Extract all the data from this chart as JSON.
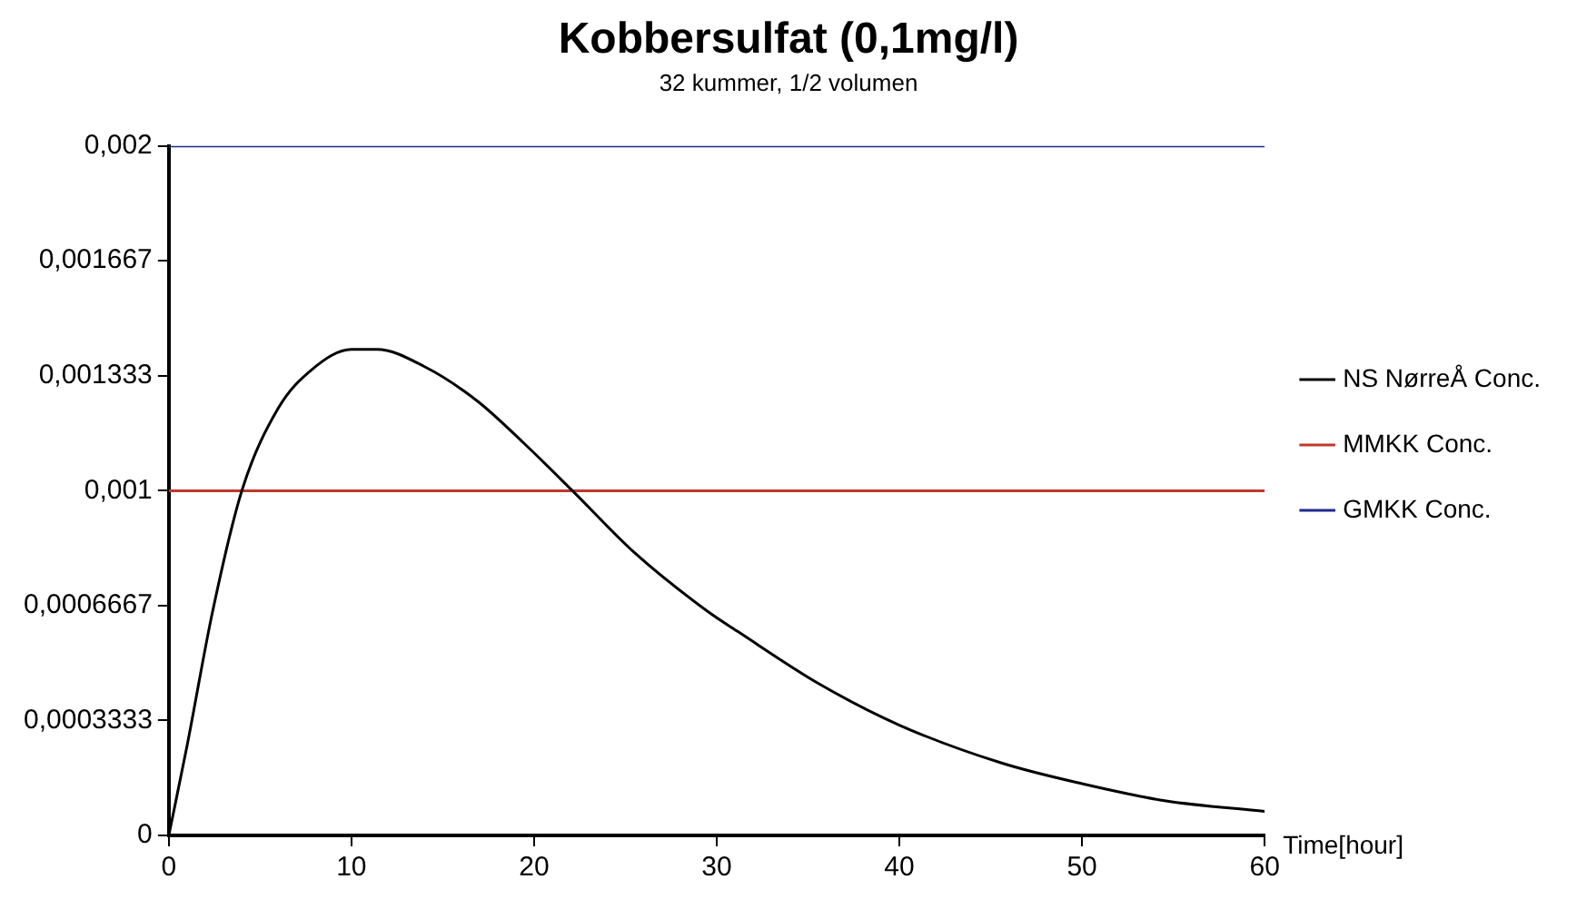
{
  "chart_data": {
    "type": "line",
    "title": "Kobbersulfat (0,1mg/l)",
    "subtitle": "32 kummer, 1/2 volumen",
    "xlabel": "Time[hour]",
    "xlim": [
      0,
      60
    ],
    "xticks": [
      0,
      10,
      20,
      30,
      40,
      50,
      60
    ],
    "ylim": [
      0,
      0.002
    ],
    "yticks": [
      {
        "value": 0,
        "label": "0"
      },
      {
        "value": 0.0003333,
        "label": "0,0003333"
      },
      {
        "value": 0.0006667,
        "label": "0,0006667"
      },
      {
        "value": 0.001,
        "label": "0,001"
      },
      {
        "value": 0.001333,
        "label": "0,001333"
      },
      {
        "value": 0.001667,
        "label": "0,001667"
      },
      {
        "value": 0.002,
        "label": "0,002"
      }
    ],
    "grid": false,
    "legend": "right",
    "marker": "none",
    "line_style": "solid",
    "series": [
      {
        "name": "NS NørreÅ Conc.",
        "color": "#000000",
        "x": [
          0,
          1,
          2.4,
          4,
          6,
          7.8,
          10,
          11.4,
          14,
          16.9,
          19.4,
          22.1,
          25.5,
          29.5,
          31.2,
          35.6,
          40,
          45.6,
          50,
          54.6,
          60
        ],
        "values": [
          0,
          0.00026,
          0.00065,
          0.001,
          0.00124,
          0.00135,
          0.00141,
          0.00141,
          0.00136,
          0.00126,
          0.00114,
          0.001,
          0.00082,
          0.00065,
          0.00059,
          0.00044,
          0.00032,
          0.00021,
          0.00015,
          0.0001,
          7e-05
        ]
      },
      {
        "name": "MMKK Conc.",
        "color": "#c0392b",
        "x": [
          0,
          60
        ],
        "values": [
          0.001,
          0.001
        ]
      },
      {
        "name": "GMKK Conc.",
        "color": "#1f2a8c",
        "x": [
          0,
          60
        ],
        "values": [
          0.002,
          0.002
        ]
      }
    ]
  }
}
